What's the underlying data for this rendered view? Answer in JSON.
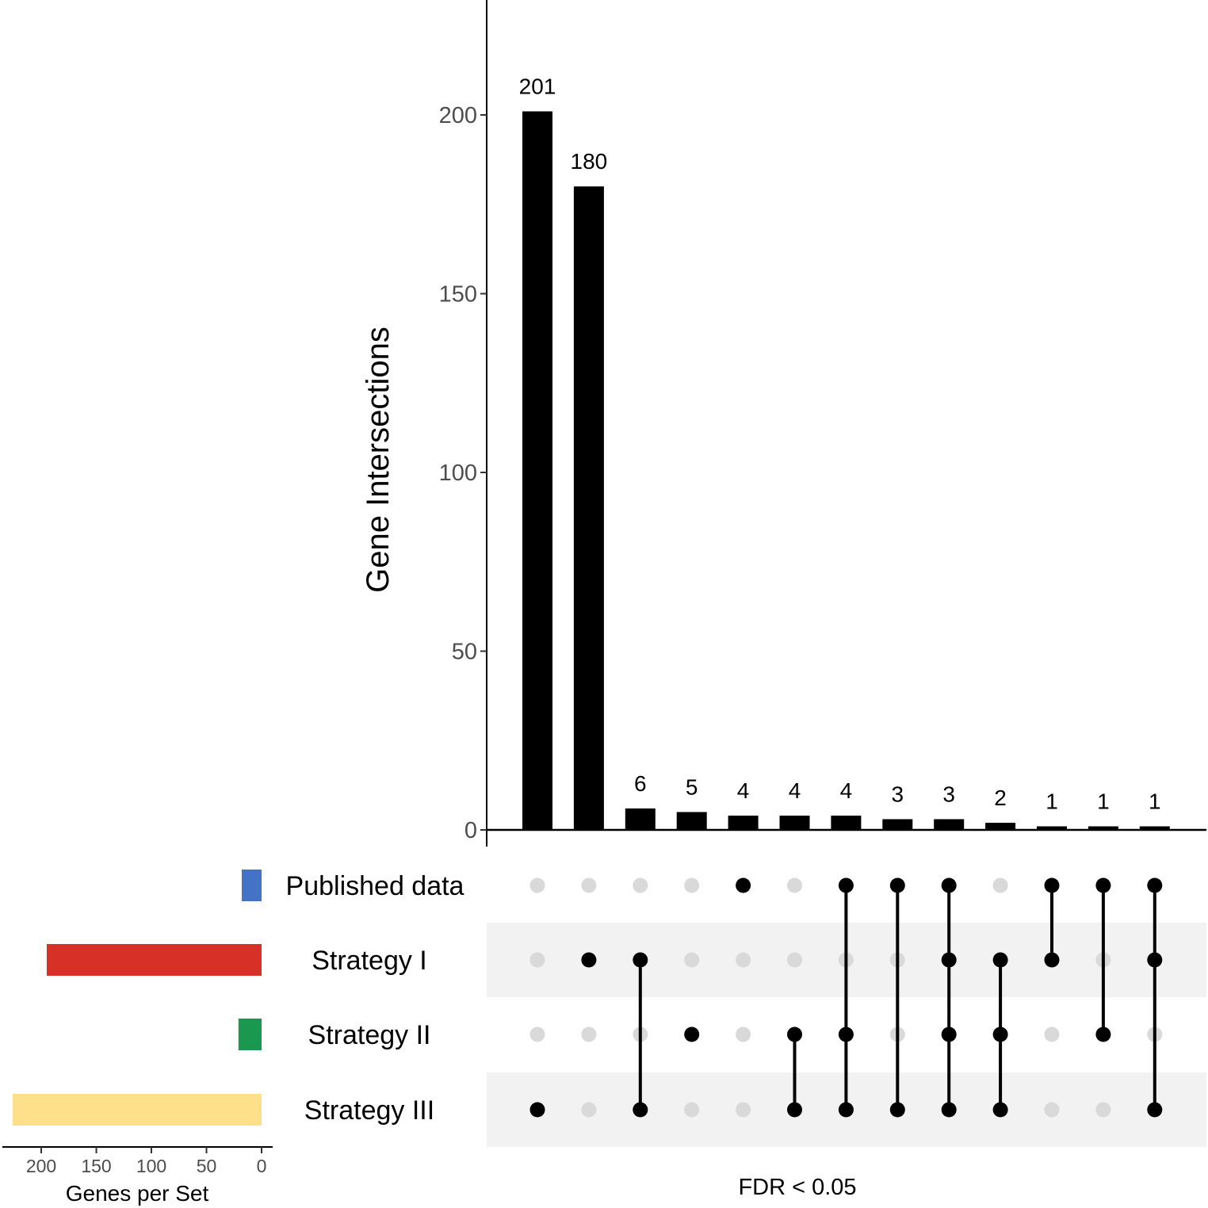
{
  "chart_data": {
    "type": "bar",
    "subtype": "upset",
    "ylabel": "Gene Intersections",
    "xlabel": "FDR < 0.05",
    "ylim": [
      0,
      230
    ],
    "yticks": [
      0,
      50,
      100,
      150,
      200
    ],
    "sets": [
      "Published data",
      "Strategy I",
      "Strategy II",
      "Strategy III"
    ],
    "set_colors": [
      "#4472c4",
      "#d73027",
      "#1a9850",
      "#fee08b"
    ],
    "set_sizes": {
      "xlabel": "Genes per Set",
      "xlim": [
        225,
        0
      ],
      "xticks": [
        200,
        150,
        100,
        50,
        0
      ],
      "values": [
        18,
        195,
        21,
        226
      ]
    },
    "intersections": [
      {
        "value": 201,
        "label": "201",
        "members": [
          3
        ]
      },
      {
        "value": 180,
        "label": "180",
        "members": [
          1
        ]
      },
      {
        "value": 6,
        "label": "6",
        "members": [
          1,
          3
        ]
      },
      {
        "value": 5,
        "label": "5",
        "members": [
          2
        ]
      },
      {
        "value": 4,
        "label": "4",
        "members": [
          0
        ]
      },
      {
        "value": 4,
        "label": "4",
        "members": [
          2,
          3
        ]
      },
      {
        "value": 4,
        "label": "4",
        "members": [
          0,
          2,
          3
        ]
      },
      {
        "value": 3,
        "label": "3",
        "members": [
          0,
          3
        ]
      },
      {
        "value": 3,
        "label": "3",
        "members": [
          0,
          1,
          2,
          3
        ]
      },
      {
        "value": 2,
        "label": "2",
        "members": [
          1,
          2,
          3
        ]
      },
      {
        "value": 1,
        "label": "1",
        "members": [
          0,
          1
        ]
      },
      {
        "value": 1,
        "label": "1",
        "members": [
          0,
          2
        ]
      },
      {
        "value": 1,
        "label": "1",
        "members": [
          0,
          1,
          3
        ]
      }
    ],
    "grid": false
  }
}
